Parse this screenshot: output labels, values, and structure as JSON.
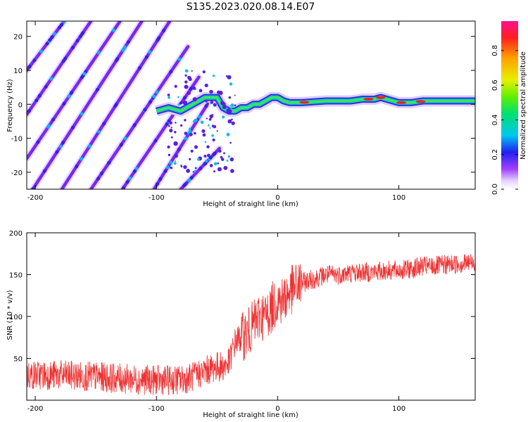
{
  "title": "S135.2023.020.08.14.E07",
  "chart_data": [
    {
      "type": "heatmap",
      "xlabel": "Height of straight line (km)",
      "ylabel": "Frequency (Hz)",
      "xlim": [
        -207,
        163
      ],
      "ylim": [
        -25,
        24.5
      ],
      "xticks": [
        -200,
        -100,
        0,
        100
      ],
      "yticks": [
        -20,
        -10,
        0,
        10,
        20
      ],
      "ridge_lines": [
        {
          "start": [
            -207,
            10
          ],
          "end": [
            -176,
            24.5
          ]
        },
        {
          "start": [
            -207,
            -3
          ],
          "end": [
            -154,
            24.5
          ]
        },
        {
          "start": [
            -207,
            -16
          ],
          "end": [
            -130,
            24.5
          ]
        },
        {
          "start": [
            -202,
            -25
          ],
          "end": [
            -112,
            24.5
          ]
        },
        {
          "start": [
            -178,
            -25
          ],
          "end": [
            -89,
            24.5
          ]
        },
        {
          "start": [
            -154,
            -25
          ],
          "end": [
            -74,
            17
          ]
        },
        {
          "start": [
            -128,
            -25
          ],
          "end": [
            -65,
            8
          ]
        },
        {
          "start": [
            -102,
            -25
          ],
          "end": [
            -58,
            0
          ]
        },
        {
          "start": [
            -80,
            -25
          ],
          "end": [
            -48,
            -13
          ]
        }
      ],
      "trace": {
        "x": [
          -100,
          -90,
          -80,
          -70,
          -60,
          -50,
          -45,
          -40,
          -35,
          -30,
          -25,
          -20,
          -15,
          -10,
          -5,
          0,
          5,
          10,
          20,
          40,
          60,
          70,
          80,
          85,
          90,
          100,
          110,
          120,
          140,
          163
        ],
        "y": [
          -2,
          -1,
          -2,
          0,
          2,
          2,
          -1,
          -2,
          -2,
          -1,
          -1,
          0,
          0,
          1,
          2,
          2,
          1,
          0.5,
          0.5,
          1,
          1,
          1.5,
          1.5,
          2,
          1.5,
          0.5,
          0.5,
          1,
          1,
          1
        ]
      },
      "colorbar": {
        "label": "Normalized spectral amplitude",
        "ticks": [
          0.0,
          0.2,
          0.4,
          0.6,
          0.8
        ],
        "range": [
          0,
          0.97
        ],
        "colormap": "rainbow"
      }
    },
    {
      "type": "line",
      "xlabel": "Height of straight line (km)",
      "ylabel": "SNR (10 * v/v)",
      "xlim": [
        -207,
        163
      ],
      "ylim": [
        0,
        200
      ],
      "xticks": [
        -200,
        -100,
        0,
        100
      ],
      "yticks": [
        50,
        100,
        150,
        200
      ],
      "color": "#ee3333",
      "series": [
        {
          "x": [
            -207,
            -180,
            -150,
            -120,
            -100,
            -80,
            -70,
            -60,
            -50,
            -45,
            -40,
            -35,
            -30,
            -25,
            -20,
            -15,
            -10,
            -5,
            0,
            5,
            10,
            15,
            20,
            25,
            30,
            40,
            50,
            60,
            70,
            80,
            90,
            100,
            110,
            120,
            130,
            140,
            150,
            163
          ],
          "values": [
            30,
            30,
            28,
            25,
            24,
            24,
            28,
            35,
            40,
            40,
            45,
            70,
            75,
            80,
            90,
            100,
            100,
            110,
            120,
            120,
            130,
            135,
            140,
            143,
            145,
            150,
            150,
            152,
            153,
            153,
            155,
            155,
            157,
            160,
            160,
            162,
            163,
            165
          ]
        }
      ]
    }
  ]
}
